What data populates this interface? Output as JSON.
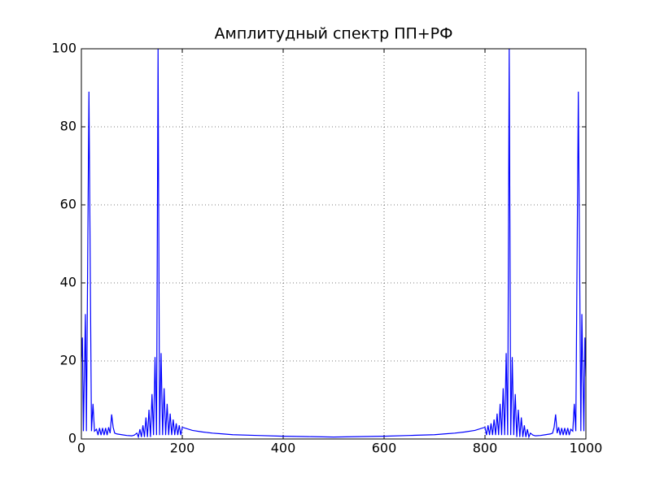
{
  "chart_data": {
    "type": "line",
    "title": "Амплитудный спектр ПП+РФ",
    "x": [
      0,
      2,
      4,
      8,
      10,
      15,
      20,
      23,
      26,
      30,
      33,
      36,
      39,
      42,
      45,
      48,
      51,
      54,
      57,
      60,
      63,
      66,
      70,
      80,
      90,
      100,
      105,
      110,
      113,
      116,
      119,
      122,
      125,
      128,
      131,
      134,
      137,
      140,
      143,
      146,
      149,
      152,
      155,
      158,
      161,
      164,
      167,
      170,
      173,
      176,
      179,
      182,
      185,
      188,
      191,
      194,
      197,
      200,
      220,
      240,
      260,
      280,
      300,
      350,
      400,
      450,
      500,
      550,
      600,
      650,
      700,
      720,
      740,
      760,
      780,
      800,
      803,
      806,
      809,
      812,
      815,
      818,
      821,
      824,
      827,
      830,
      833,
      836,
      839,
      842,
      845,
      848,
      851,
      854,
      857,
      860,
      863,
      866,
      869,
      872,
      875,
      878,
      881,
      884,
      887,
      890,
      895,
      900,
      910,
      920,
      930,
      934,
      937,
      940,
      943,
      946,
      949,
      952,
      955,
      958,
      961,
      964,
      967,
      970,
      974,
      977,
      980,
      985,
      990,
      992,
      996,
      998,
      1000
    ],
    "series": [
      {
        "color": "#0000ff",
        "values": [
          20,
          26,
          2,
          32,
          2,
          89,
          2,
          9,
          2,
          2.5,
          1,
          2.8,
          1,
          2.8,
          1,
          2.8,
          1,
          3,
          1.5,
          6.3,
          3,
          1.5,
          1.3,
          1.1,
          0.9,
          0.8,
          1,
          1.5,
          0.5,
          2.5,
          0.5,
          3.5,
          0.5,
          5.5,
          0.5,
          7.5,
          0.5,
          11.5,
          1,
          21,
          1,
          100,
          1,
          22,
          1,
          13,
          1,
          9,
          1,
          6.5,
          1,
          5,
          1,
          4,
          1,
          3.5,
          1,
          3,
          2.2,
          1.8,
          1.5,
          1.3,
          1.1,
          0.9,
          0.7,
          0.6,
          0.5,
          0.6,
          0.7,
          0.9,
          1.1,
          1.3,
          1.5,
          1.8,
          2.2,
          3,
          1,
          3.5,
          1,
          4,
          1,
          5,
          1,
          6.5,
          1,
          9,
          1,
          13,
          1,
          22,
          1,
          100,
          1,
          21,
          1,
          11.5,
          0.5,
          7.5,
          0.5,
          5.5,
          0.5,
          3.5,
          0.5,
          2.5,
          0.5,
          1.5,
          1,
          0.8,
          0.9,
          1.1,
          1.3,
          1.5,
          3,
          6.3,
          1.5,
          3,
          1,
          2.8,
          1,
          2.8,
          1,
          2.8,
          1,
          2.5,
          2,
          9,
          2,
          89,
          2,
          32,
          2,
          26,
          16
        ]
      }
    ],
    "xlim": [
      0,
      1000
    ],
    "xticks": [
      0,
      200,
      400,
      600,
      800,
      1000
    ],
    "ylim": [
      0,
      100
    ],
    "yticks": [
      0,
      20,
      40,
      60,
      80,
      100
    ],
    "grid": true
  }
}
